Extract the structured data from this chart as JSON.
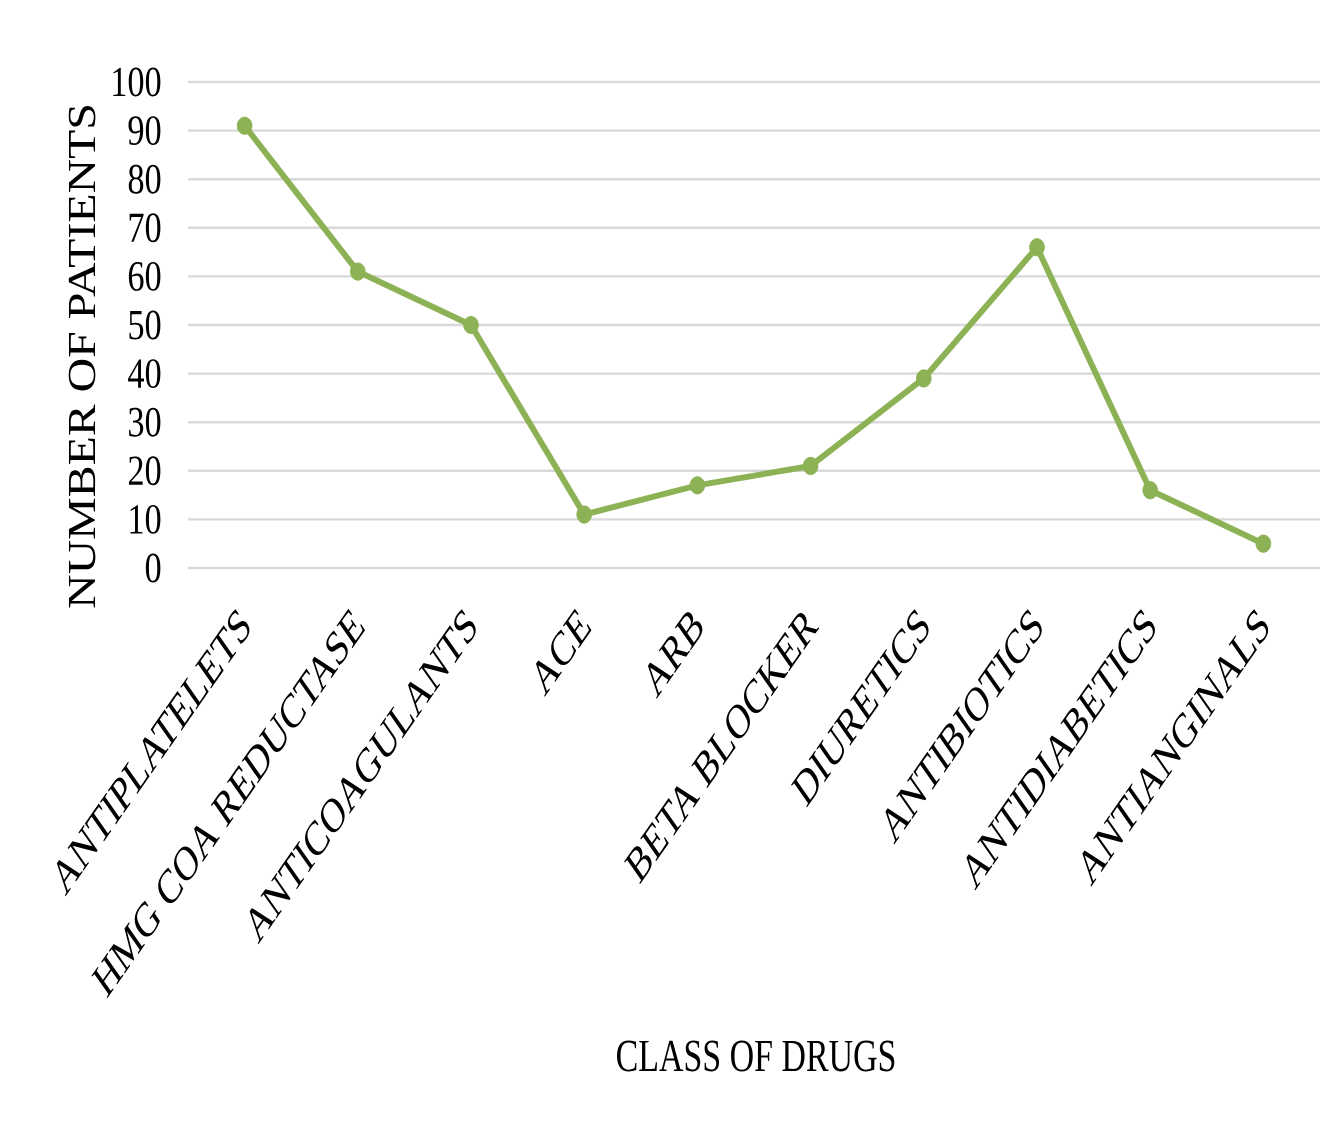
{
  "chart_data": {
    "type": "line",
    "xlabel": "CLASS OF DRUGS",
    "ylabel": "NUMBER OF PATIENTS",
    "categories": [
      "ANTIPLATELETS",
      "HMG COA REDUCTASE",
      "ANTICOAGULANTS",
      "ACE",
      "ARB",
      "BETA BLOCKER",
      "DIURETICS",
      "ANTIBIOTICS",
      "ANTIDIABETICS",
      "ANTIANGINALS"
    ],
    "series": [
      {
        "color": "#8db255",
        "values": [
          91,
          61,
          50,
          11,
          17,
          21,
          39,
          66,
          16,
          5
        ]
      }
    ],
    "ylim": [
      0,
      100
    ],
    "yticks": [
      0,
      10,
      20,
      30,
      40,
      50,
      60,
      70,
      80,
      90,
      100
    ],
    "grid": "y",
    "marker": "circle",
    "line_style": "solid"
  }
}
